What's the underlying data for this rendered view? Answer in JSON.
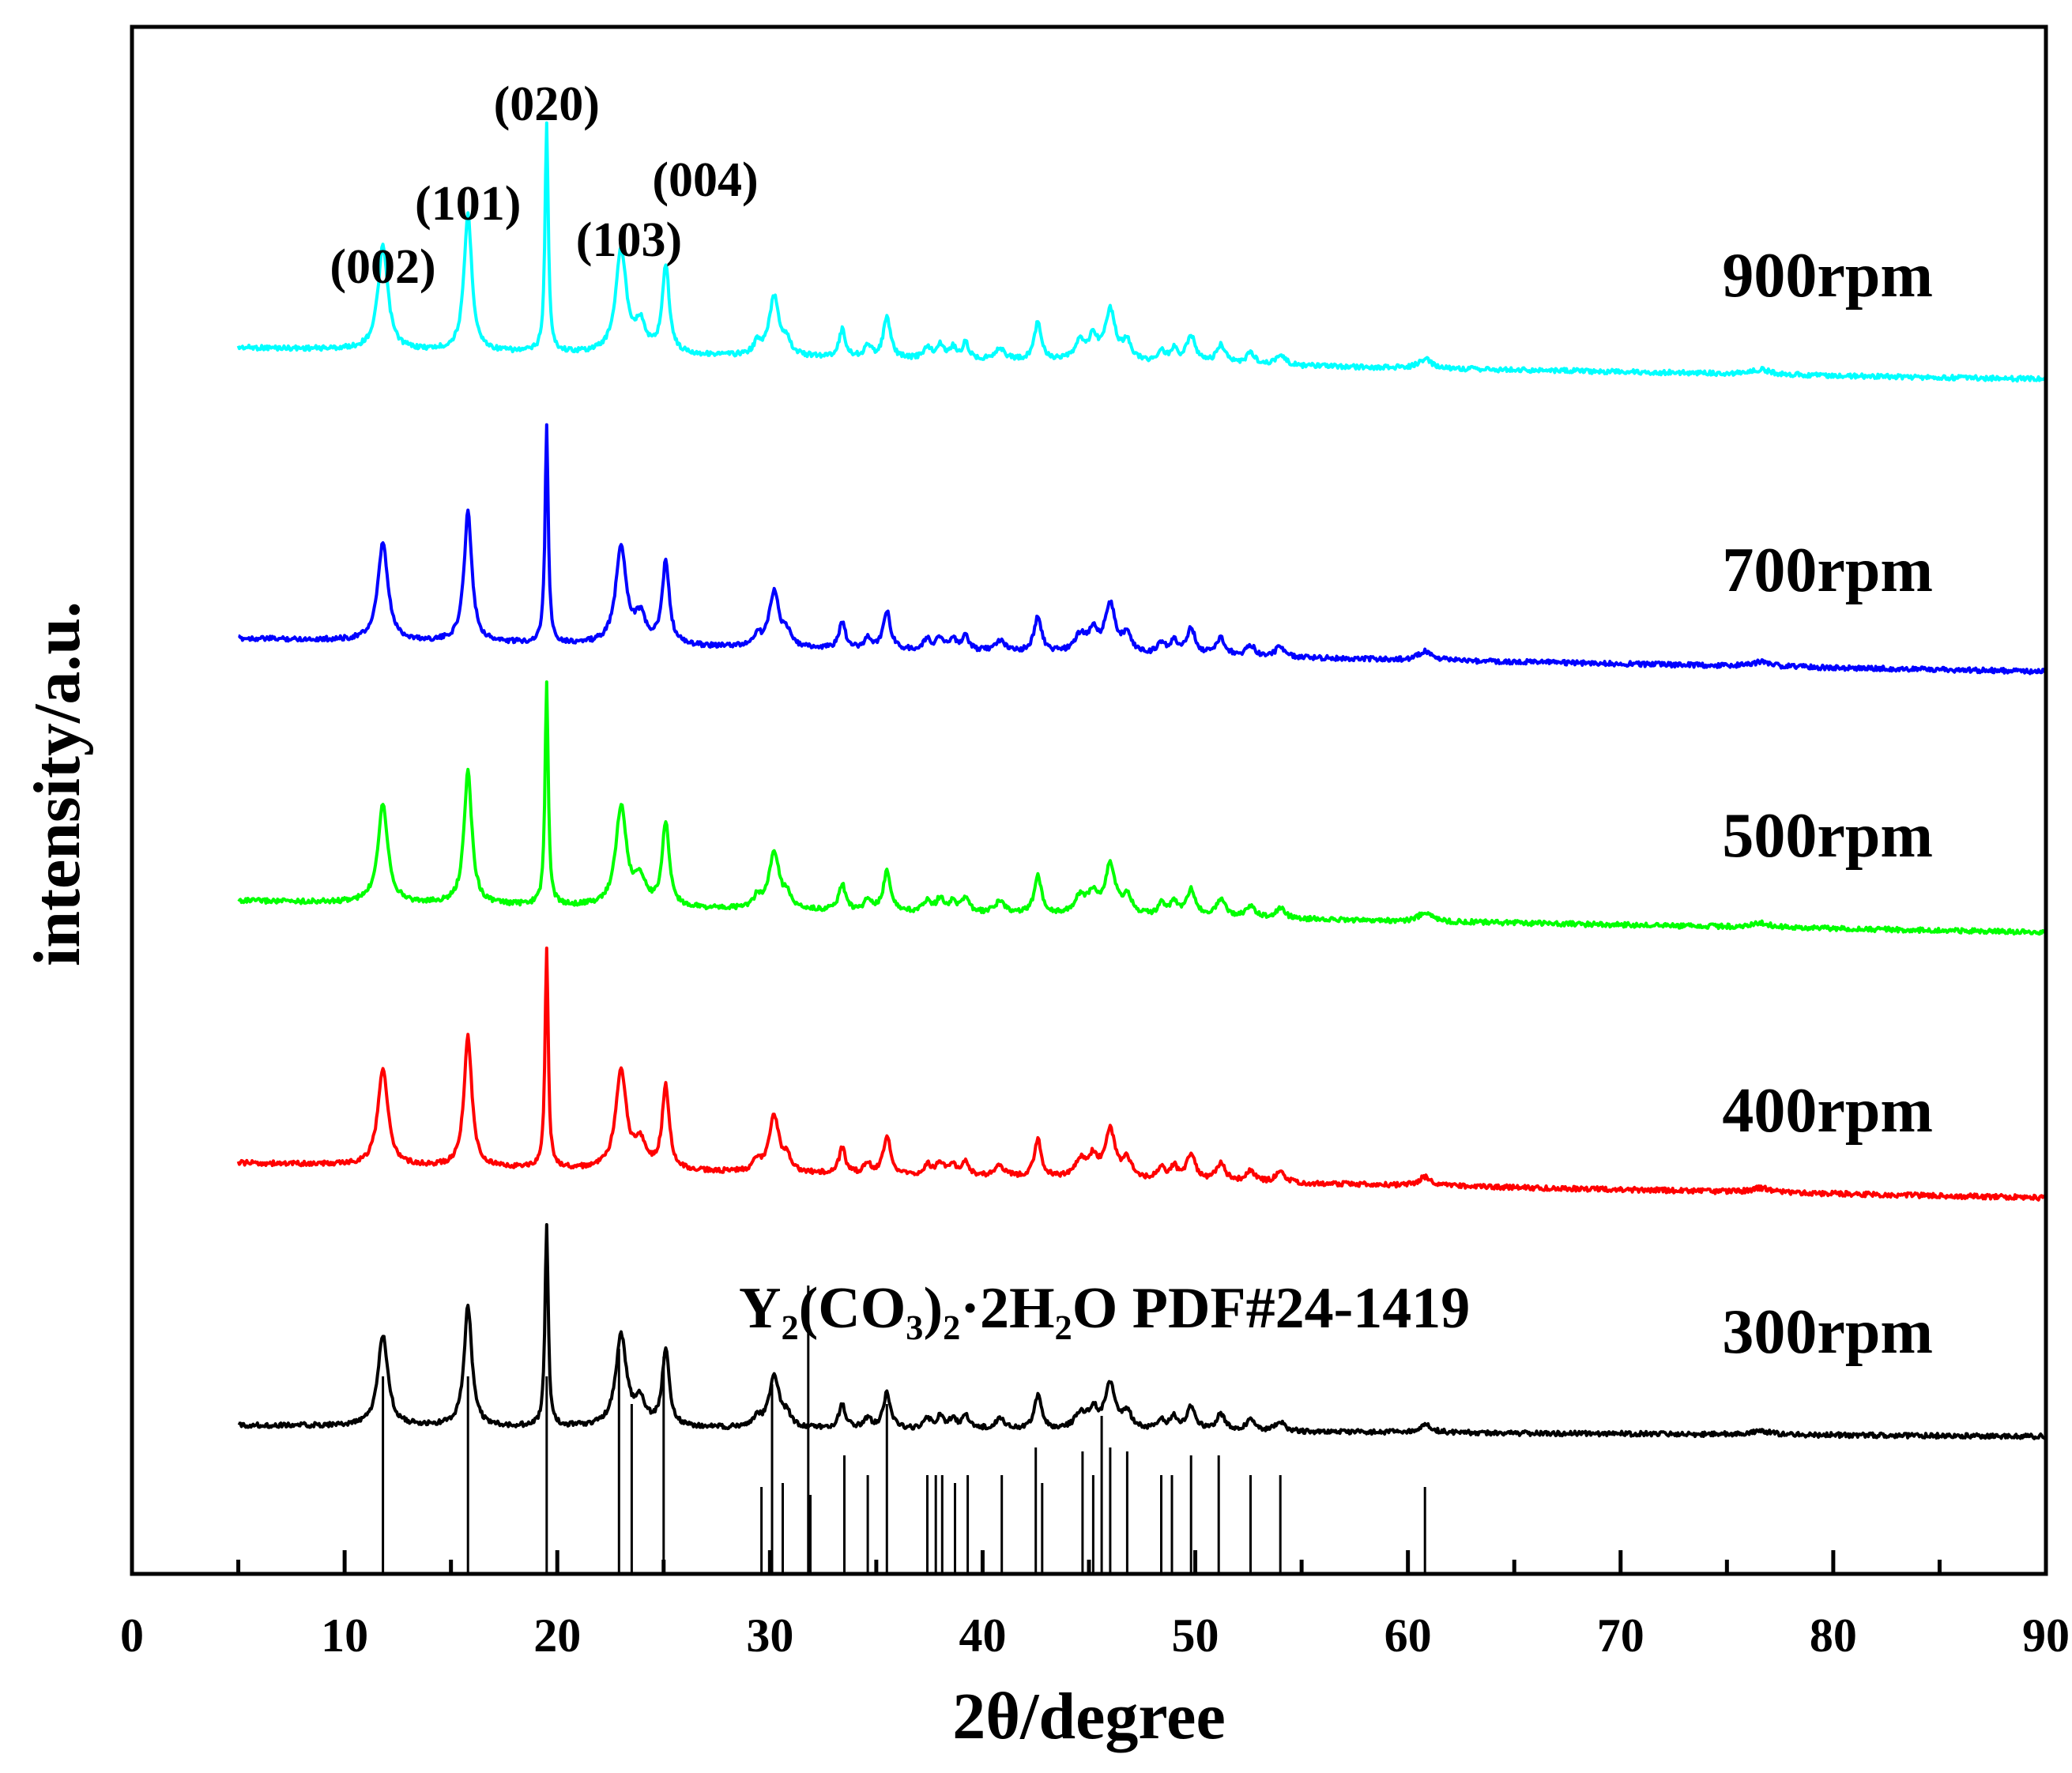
{
  "chart_data": {
    "type": "line",
    "title": "",
    "xlabel": "2θ/degree",
    "ylabel": "intensity/a.u.",
    "xlim": [
      0,
      90
    ],
    "x_ticks": [
      0,
      10,
      20,
      30,
      40,
      50,
      60,
      70,
      80,
      90
    ],
    "x_tick_labels": [
      "0",
      "10",
      "20",
      "30",
      "40",
      "50",
      "60",
      "70",
      "80",
      "90"
    ],
    "y_ticks_shown": false,
    "x_start": 5,
    "x_end": 90,
    "peaks": [
      {
        "pos": 11.8,
        "h": 0.45,
        "w": 0.28
      },
      {
        "pos": 15.8,
        "h": 0.6,
        "w": 0.22
      },
      {
        "pos": 19.5,
        "h": 1.0,
        "w": 0.09
      },
      {
        "pos": 23.0,
        "h": 0.45,
        "w": 0.3
      },
      {
        "pos": 23.9,
        "h": 0.12,
        "w": 0.3
      },
      {
        "pos": 25.1,
        "h": 0.38,
        "w": 0.2
      },
      {
        "pos": 29.4,
        "h": 0.05,
        "w": 0.2
      },
      {
        "pos": 30.2,
        "h": 0.26,
        "w": 0.28
      },
      {
        "pos": 30.8,
        "h": 0.06,
        "w": 0.2
      },
      {
        "pos": 33.4,
        "h": 0.12,
        "w": 0.18
      },
      {
        "pos": 34.6,
        "h": 0.05,
        "w": 0.2
      },
      {
        "pos": 35.5,
        "h": 0.18,
        "w": 0.2
      },
      {
        "pos": 37.4,
        "h": 0.05,
        "w": 0.2
      },
      {
        "pos": 38.0,
        "h": 0.06,
        "w": 0.2
      },
      {
        "pos": 38.6,
        "h": 0.05,
        "w": 0.2
      },
      {
        "pos": 39.2,
        "h": 0.07,
        "w": 0.18
      },
      {
        "pos": 40.8,
        "h": 0.05,
        "w": 0.3
      },
      {
        "pos": 42.6,
        "h": 0.17,
        "w": 0.2
      },
      {
        "pos": 44.6,
        "h": 0.08,
        "w": 0.3
      },
      {
        "pos": 45.2,
        "h": 0.09,
        "w": 0.25
      },
      {
        "pos": 46.0,
        "h": 0.22,
        "w": 0.3
      },
      {
        "pos": 46.8,
        "h": 0.08,
        "w": 0.25
      },
      {
        "pos": 48.4,
        "h": 0.05,
        "w": 0.2
      },
      {
        "pos": 49.0,
        "h": 0.06,
        "w": 0.2
      },
      {
        "pos": 49.8,
        "h": 0.12,
        "w": 0.25
      },
      {
        "pos": 51.2,
        "h": 0.08,
        "w": 0.25
      },
      {
        "pos": 52.6,
        "h": 0.05,
        "w": 0.25
      },
      {
        "pos": 54.0,
        "h": 0.05,
        "w": 0.25
      },
      {
        "pos": 60.8,
        "h": 0.04,
        "w": 0.35
      },
      {
        "pos": 76.6,
        "h": 0.02,
        "w": 0.5
      }
    ],
    "series": [
      {
        "name": "900rpm",
        "color": "#00ffff",
        "baseline_start": 0.035,
        "baseline_end": 0.0,
        "offset": 4
      },
      {
        "name": "700rpm",
        "color": "#0000ff",
        "baseline_start": 0.035,
        "baseline_end": 0.0,
        "offset": 3
      },
      {
        "name": "500rpm",
        "color": "#00ff00",
        "baseline_start": 0.035,
        "baseline_end": 0.0,
        "offset": 2
      },
      {
        "name": "400rpm",
        "color": "#ff0000",
        "baseline_start": 0.035,
        "baseline_end": 0.0,
        "offset": 1
      },
      {
        "name": "300rpm",
        "color": "#000000",
        "baseline_start": 0.035,
        "baseline_end": 0.0,
        "offset": 0
      }
    ],
    "reference": {
      "name": "Y₂(CO₃)₂·2H₂O PDF#24-1419",
      "sticks": [
        {
          "x": 11.8,
          "h": 0.5
        },
        {
          "x": 15.8,
          "h": 0.5
        },
        {
          "x": 19.5,
          "h": 0.5
        },
        {
          "x": 22.9,
          "h": 0.57
        },
        {
          "x": 23.5,
          "h": 0.43
        },
        {
          "x": 25.0,
          "h": 0.55
        },
        {
          "x": 29.6,
          "h": 0.22
        },
        {
          "x": 30.1,
          "h": 0.48
        },
        {
          "x": 30.6,
          "h": 0.23
        },
        {
          "x": 31.8,
          "h": 0.73
        },
        {
          "x": 31.9,
          "h": 0.2
        },
        {
          "x": 33.5,
          "h": 0.3
        },
        {
          "x": 34.6,
          "h": 0.25
        },
        {
          "x": 35.5,
          "h": 0.43
        },
        {
          "x": 37.4,
          "h": 0.25
        },
        {
          "x": 37.8,
          "h": 0.25
        },
        {
          "x": 38.1,
          "h": 0.25
        },
        {
          "x": 38.7,
          "h": 0.23
        },
        {
          "x": 39.3,
          "h": 0.25
        },
        {
          "x": 40.9,
          "h": 0.25
        },
        {
          "x": 42.5,
          "h": 0.32
        },
        {
          "x": 42.8,
          "h": 0.23
        },
        {
          "x": 44.7,
          "h": 0.31
        },
        {
          "x": 45.2,
          "h": 0.25
        },
        {
          "x": 45.6,
          "h": 0.4
        },
        {
          "x": 46.0,
          "h": 0.32
        },
        {
          "x": 46.8,
          "h": 0.31
        },
        {
          "x": 48.4,
          "h": 0.25
        },
        {
          "x": 48.9,
          "h": 0.25
        },
        {
          "x": 49.8,
          "h": 0.3
        },
        {
          "x": 51.1,
          "h": 0.3
        },
        {
          "x": 52.6,
          "h": 0.25
        },
        {
          "x": 54.0,
          "h": 0.25
        },
        {
          "x": 60.8,
          "h": 0.22
        }
      ]
    },
    "annotations": [
      {
        "text": "(002)",
        "x": 11.8
      },
      {
        "text": "(101)",
        "x": 15.8
      },
      {
        "text": "(020)",
        "x": 19.5
      },
      {
        "text": "(103)",
        "x": 23.0
      },
      {
        "text": "(004)",
        "x": 25.1
      }
    ]
  }
}
